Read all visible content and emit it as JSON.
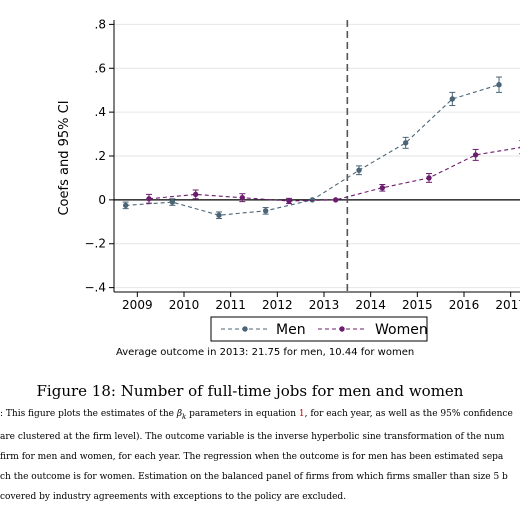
{
  "chart_data": {
    "type": "line",
    "ylabel": "Coefs and 95% CI",
    "xlabel": "",
    "ylim": [
      -0.42,
      0.82
    ],
    "yticks": [
      -0.4,
      -0.2,
      0,
      0.2,
      0.4,
      0.6,
      0.8
    ],
    "ytick_labels": [
      "−.4",
      "−.2",
      "0",
      ".2",
      ".4",
      ".6",
      ".8"
    ],
    "xticks": [
      2009,
      2010,
      2011,
      2012,
      2013,
      2014,
      2015,
      2016,
      2017
    ],
    "xtick_labels": [
      "2009",
      "2010",
      "2011",
      "2012",
      "2013",
      "2014",
      "2015",
      "2016",
      "2017"
    ],
    "xlim": [
      2008.5,
      2017.2
    ],
    "grid": true,
    "vline_x": 2013.5,
    "legend_position": "bottom",
    "series": [
      {
        "name": "Men",
        "color": "#4a6577",
        "x": [
          2008.75,
          2009.75,
          2010.75,
          2011.75,
          2012.75,
          2013.75,
          2014.75,
          2015.75,
          2016.75
        ],
        "y": [
          -0.025,
          -0.01,
          -0.07,
          -0.05,
          0.0,
          0.135,
          0.26,
          0.46,
          0.525
        ],
        "ci": [
          0.015,
          0.015,
          0.015,
          0.015,
          0.0,
          0.02,
          0.025,
          0.03,
          0.035
        ]
      },
      {
        "name": "Women",
        "color": "#6b1d6e",
        "x": [
          2009.25,
          2010.25,
          2011.25,
          2012.25,
          2013.25,
          2014.25,
          2015.25,
          2016.25,
          2017.25
        ],
        "y": [
          0.005,
          0.025,
          0.01,
          -0.005,
          0.0,
          0.055,
          0.1,
          0.205,
          0.24
        ],
        "ci": [
          0.02,
          0.02,
          0.018,
          0.012,
          0.0,
          0.015,
          0.02,
          0.025,
          0.03
        ]
      }
    ],
    "note": "Average outcome in 2013: 21.75 for men, 10.44 for women"
  },
  "caption": "Figure 18:  Number of full-time jobs for men and women",
  "notes_lines": [
    {
      "pre": ": This figure plots the estimates of the ",
      "math": "β",
      "sub": "k",
      "mid": " parameters in equation ",
      "ref": "1",
      "post": ", for each year, as well as the 95% confidence"
    },
    {
      "text": " are clustered at the firm level). The outcome variable is the inverse hyperbolic sine transformation of the num"
    },
    {
      "text": " firm for men and women, for each year. The regression when the outcome is for men has been estimated sepa"
    },
    {
      "text": "ch the outcome is for women. Estimation on the balanced panel of firms from which firms smaller than size 5 b"
    },
    {
      "text": "covered by industry agreements with exceptions to the policy are excluded."
    }
  ]
}
